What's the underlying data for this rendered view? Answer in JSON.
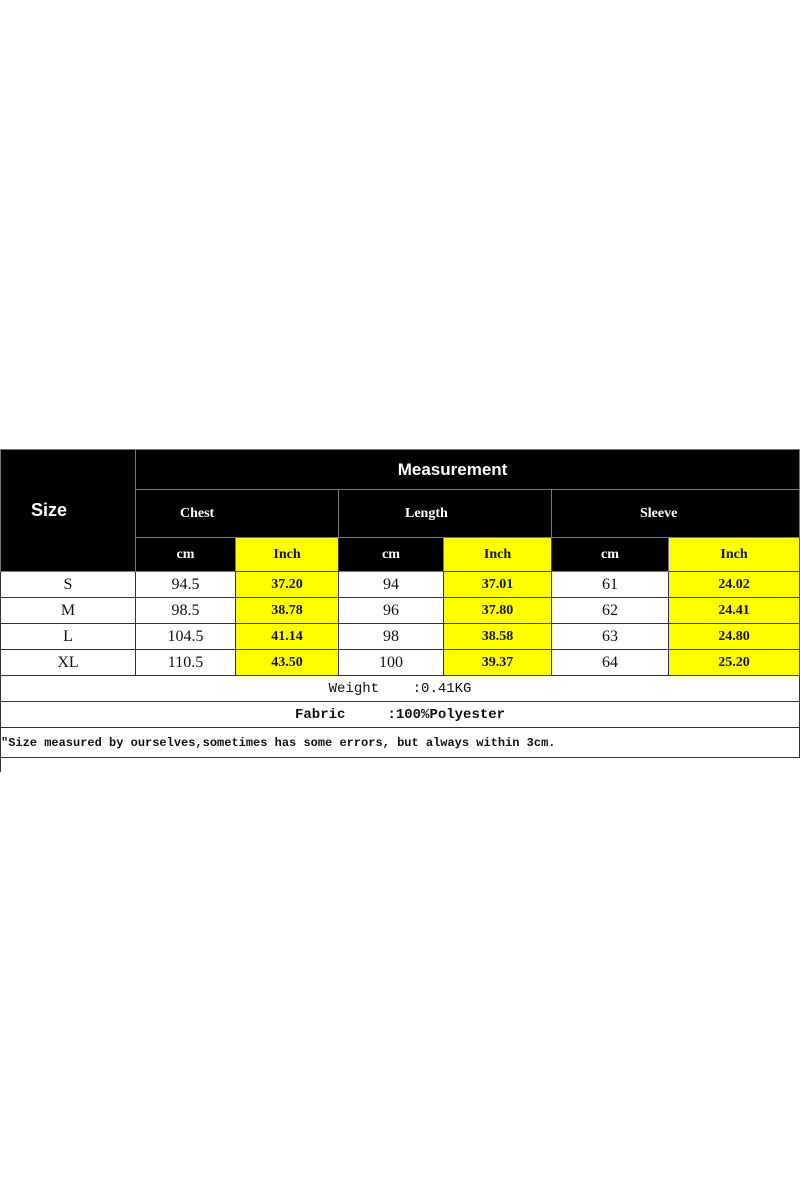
{
  "table": {
    "size_header": "Size",
    "measurement_header": "Measurement",
    "groups": [
      "Chest",
      "Length",
      "Sleeve"
    ],
    "units": [
      "cm",
      "Inch",
      "cm",
      "Inch",
      "cm",
      "Inch"
    ],
    "rows": [
      {
        "size": "S",
        "values": [
          "94.5",
          "37.20",
          "94",
          "37.01",
          "61",
          "24.02"
        ]
      },
      {
        "size": "M",
        "values": [
          "98.5",
          "38.78",
          "96",
          "37.80",
          "62",
          "24.41"
        ]
      },
      {
        "size": "L",
        "values": [
          "104.5",
          "41.14",
          "98",
          "38.58",
          "63",
          "24.80"
        ]
      },
      {
        "size": "XL",
        "values": [
          "110.5",
          "43.50",
          "100",
          "39.37",
          "64",
          "25.20"
        ]
      }
    ],
    "weight_label": "Weight",
    "weight_value": ":0.41KG",
    "fabric_label": "Fabric",
    "fabric_value": ":100%Polyester",
    "note": "\"Size measured by ourselves,sometimes has some errors, but always within 3cm."
  },
  "colors": {
    "header_bg": "#000000",
    "inch_highlight": "#ffff00"
  }
}
